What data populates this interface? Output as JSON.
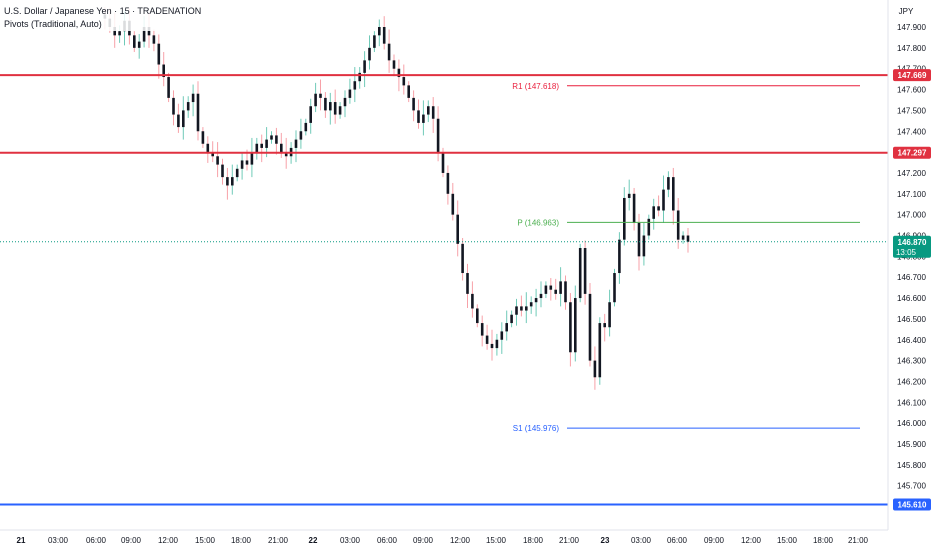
{
  "header": {
    "title": "U.S. Dollar / Japanese Yen · 15 · TRADENATION",
    "indicator": "Pivots (Traditional, Auto)"
  },
  "currency": "JPY",
  "countdown": "13:05",
  "colors": {
    "up": "#089981",
    "down": "#f23645",
    "up_wick": "#6fcab8",
    "down_wick": "#f7a1a8",
    "candle_body": "#131722",
    "red_level": "#e03140",
    "blue_level": "#2962ff",
    "pivot_p": "#4caf50",
    "pivot_r1": "#e91e3c",
    "pivot_s1": "#2962ff",
    "current": "#089981",
    "axis_text": "#131722"
  },
  "chart_data": {
    "type": "candlestick",
    "y_axis": {
      "min": 145.61,
      "max": 147.97,
      "ticks": [
        "147.900",
        "147.800",
        "147.700",
        "147.600",
        "147.500",
        "147.400",
        "147.300",
        "147.200",
        "147.100",
        "147.000",
        "146.900",
        "146.800",
        "146.700",
        "146.600",
        "146.500",
        "146.400",
        "146.300",
        "146.200",
        "146.100",
        "146.000",
        "145.900",
        "145.800",
        "145.700"
      ]
    },
    "x_axis": {
      "labels": [
        "21",
        "03:00",
        "06:00",
        "09:00",
        "12:00",
        "15:00",
        "18:00",
        "21:00",
        "22",
        "03:00",
        "06:00",
        "09:00",
        "12:00",
        "15:00",
        "18:00",
        "21:00",
        "23",
        "03:00",
        "06:00",
        "09:00",
        "12:00",
        "15:00",
        "18:00",
        "21:00"
      ]
    },
    "horizontal_levels": [
      {
        "value": 147.669,
        "label": "147.669",
        "color": "red"
      },
      {
        "value": 147.297,
        "label": "147.297",
        "color": "red"
      },
      {
        "value": 145.61,
        "label": "145.610",
        "color": "blue"
      }
    ],
    "pivots": [
      {
        "name": "R1",
        "value": 147.618,
        "label": "R1 (147.618)"
      },
      {
        "name": "P",
        "value": 146.963,
        "label": "P (146.963)"
      },
      {
        "name": "S1",
        "value": 145.976,
        "label": "S1 (145.976)"
      }
    ],
    "current_price": {
      "value": 146.87,
      "label": "146.870"
    },
    "price_path": [
      147.96,
      147.94,
      147.9,
      147.86,
      147.88,
      147.93,
      147.86,
      147.8,
      147.83,
      147.9,
      147.86,
      147.82,
      147.72,
      147.66,
      147.56,
      147.48,
      147.42,
      147.5,
      147.54,
      147.58,
      147.4,
      147.34,
      147.3,
      147.28,
      147.24,
      147.18,
      147.14,
      147.18,
      147.22,
      147.26,
      147.24,
      147.3,
      147.34,
      147.32,
      147.36,
      147.38,
      147.34,
      147.3,
      147.28,
      147.32,
      147.36,
      147.4,
      147.44,
      147.52,
      147.58,
      147.56,
      147.5,
      147.54,
      147.48,
      147.52,
      147.56,
      147.6,
      147.64,
      147.68,
      147.74,
      147.8,
      147.86,
      147.9,
      147.82,
      147.74,
      147.7,
      147.66,
      147.62,
      147.56,
      147.5,
      147.44,
      147.48,
      147.52,
      147.46,
      147.3,
      147.2,
      147.1,
      147.0,
      146.86,
      146.72,
      146.62,
      146.55,
      146.48,
      146.42,
      146.38,
      146.36,
      146.4,
      146.44,
      146.48,
      146.52,
      146.56,
      146.54,
      146.56,
      146.58,
      146.6,
      146.62,
      146.66,
      146.64,
      146.62,
      146.68,
      146.58,
      146.34,
      146.6,
      146.84,
      146.62,
      146.3,
      146.22,
      146.48,
      146.46,
      146.58,
      146.72,
      146.88,
      147.08,
      147.1,
      146.96,
      146.8,
      146.9,
      146.98,
      147.04,
      147.02,
      147.12,
      147.18,
      147.02,
      146.88,
      146.9,
      146.87
    ]
  }
}
